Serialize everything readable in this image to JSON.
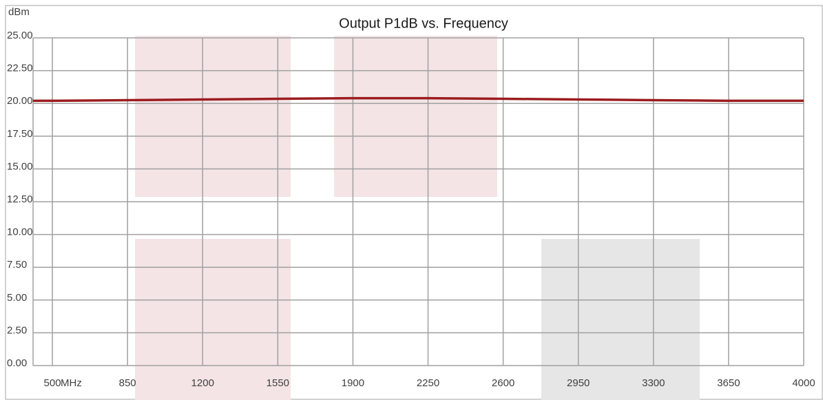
{
  "chart_data": {
    "type": "line",
    "title": "Output P1dB vs. Frequency",
    "y_label": "dBm",
    "x_label": "MHz",
    "x": [
      410,
      500,
      850,
      1200,
      1550,
      1900,
      2250,
      2600,
      2950,
      3300,
      3650,
      4000
    ],
    "series": [
      {
        "name": "Output P1dB",
        "color": "#9b1c1f",
        "values": [
          20.2,
          20.2,
          20.25,
          20.3,
          20.35,
          20.4,
          20.4,
          20.35,
          20.3,
          20.25,
          20.2,
          20.2
        ]
      }
    ],
    "xlim": [
      410,
      4000
    ],
    "xticks": [
      500,
      850,
      1200,
      1550,
      1900,
      2250,
      2600,
      2950,
      3300,
      3650,
      4000
    ],
    "ylim": [
      0,
      25
    ],
    "yticks": [
      {
        "value": 0,
        "label": "0.00"
      },
      {
        "value": 2.5,
        "label": "2.50"
      },
      {
        "value": 5,
        "label": "5.00"
      },
      {
        "value": 7.5,
        "label": "7.50"
      },
      {
        "value": 10,
        "label": "10.00"
      },
      {
        "value": 12.5,
        "label": "12.50"
      },
      {
        "value": 15,
        "label": "15.00"
      },
      {
        "value": 17.5,
        "label": "17.50"
      },
      {
        "value": 20,
        "label": "20.00"
      },
      {
        "value": 22.5,
        "label": "22.50"
      },
      {
        "value": 25,
        "label": "25.00"
      }
    ],
    "grid": true
  }
}
